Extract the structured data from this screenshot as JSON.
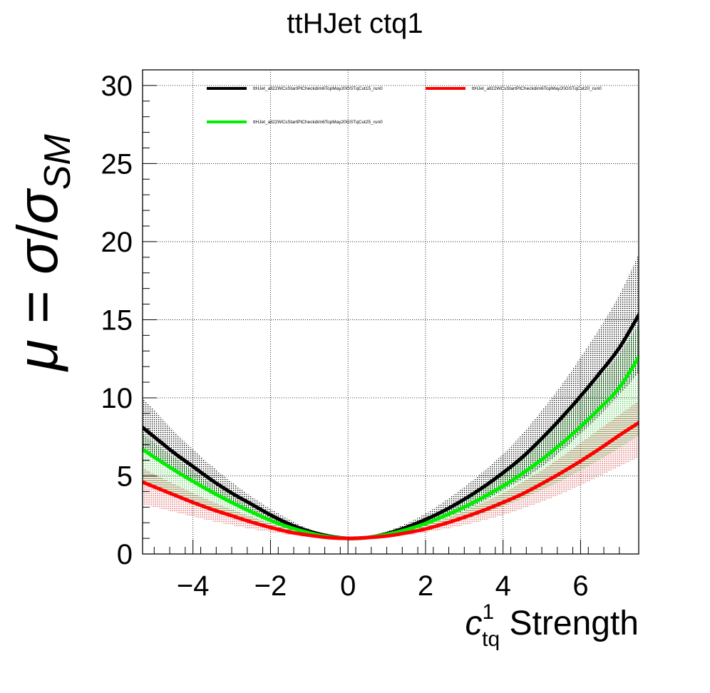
{
  "chart_data": {
    "type": "line",
    "title": "ttHJet ctq1",
    "xlabel": {
      "symbol": "c",
      "superscript": "1",
      "subscript": "tq",
      "text": "Strength"
    },
    "ylabel": {
      "mu": "μ",
      "eq": " = ",
      "sigma": "σ",
      "slash": "/",
      "sigma2": "σ",
      "subscript": "SM"
    },
    "xlim": [
      -5.3,
      7.5
    ],
    "ylim": [
      0,
      31
    ],
    "x_ticks": [
      -4,
      -2,
      0,
      2,
      4,
      6
    ],
    "x_tick_labels": [
      "−4",
      "−2",
      "0",
      "2",
      "4",
      "6"
    ],
    "y_ticks": [
      0,
      5,
      10,
      15,
      20,
      25,
      30
    ],
    "y_tick_labels": [
      "0",
      "5",
      "10",
      "15",
      "20",
      "25",
      "30"
    ],
    "grid": true,
    "legend_position": "top",
    "series": [
      {
        "name": "ttHJet_all22WCsStartPtCheckdim6TopMay20GSTqCut15_run0",
        "color": "#000000",
        "band_color": "#000000",
        "x": [
          -5.3,
          -5,
          -4.5,
          -4,
          -3.5,
          -3,
          -2.5,
          -2,
          -1.5,
          -1,
          -0.5,
          0,
          0.5,
          1,
          1.5,
          2,
          2.5,
          3,
          3.5,
          4,
          4.5,
          5,
          5.5,
          6,
          6.5,
          7,
          7.5
        ],
        "y": [
          8.1,
          7.5,
          6.5,
          5.6,
          4.7,
          3.9,
          3.2,
          2.5,
          1.9,
          1.45,
          1.15,
          1.0,
          1.05,
          1.3,
          1.7,
          2.2,
          2.8,
          3.5,
          4.3,
          5.2,
          6.2,
          7.4,
          8.7,
          10.1,
          11.6,
          13.2,
          15.3
        ],
        "band_lo": [
          6.6,
          6.1,
          5.3,
          4.6,
          3.9,
          3.3,
          2.7,
          2.1,
          1.6,
          1.3,
          1.08,
          1.0,
          1.0,
          1.15,
          1.45,
          1.85,
          2.3,
          2.8,
          3.4,
          4.1,
          4.8,
          5.6,
          6.6,
          7.7,
          8.9,
          10.2,
          11.6
        ],
        "band_hi": [
          10.0,
          9.2,
          7.9,
          6.7,
          5.6,
          4.6,
          3.7,
          2.9,
          2.2,
          1.6,
          1.22,
          1.0,
          1.12,
          1.45,
          1.95,
          2.6,
          3.4,
          4.3,
          5.3,
          6.4,
          7.7,
          9.2,
          10.8,
          12.6,
          14.5,
          16.6,
          19.2
        ]
      },
      {
        "name": "ttHJet_all22WCsStartPtCheckdim6TopMay20GSTqCut20_run0",
        "color": "#ff0000",
        "band_color": "#d03030",
        "x": [
          -5.3,
          -5,
          -4.5,
          -4,
          -3.5,
          -3,
          -2.5,
          -2,
          -1.5,
          -1,
          -0.5,
          0,
          0.5,
          1,
          1.5,
          2,
          2.5,
          3,
          3.5,
          4,
          4.5,
          5,
          5.5,
          6,
          6.5,
          7,
          7.5
        ],
        "y": [
          4.6,
          4.3,
          3.8,
          3.3,
          2.85,
          2.45,
          2.05,
          1.7,
          1.4,
          1.2,
          1.05,
          1.0,
          1.05,
          1.15,
          1.35,
          1.6,
          1.95,
          2.35,
          2.8,
          3.3,
          3.85,
          4.5,
          5.2,
          5.95,
          6.75,
          7.6,
          8.4
        ],
        "band_lo": [
          3.2,
          3.0,
          2.7,
          2.4,
          2.1,
          1.85,
          1.6,
          1.4,
          1.22,
          1.1,
          1.02,
          1.0,
          1.02,
          1.08,
          1.2,
          1.38,
          1.6,
          1.85,
          2.15,
          2.5,
          2.9,
          3.35,
          3.85,
          4.4,
          5.0,
          5.6,
          6.2
        ],
        "band_hi": [
          5.5,
          5.1,
          4.5,
          3.9,
          3.35,
          2.85,
          2.4,
          1.95,
          1.6,
          1.3,
          1.08,
          1.0,
          1.08,
          1.25,
          1.5,
          1.85,
          2.25,
          2.75,
          3.3,
          3.9,
          4.6,
          5.35,
          6.2,
          7.1,
          8.0,
          8.9,
          9.8
        ]
      },
      {
        "name": "ttHJet_all22WCsStartPtCheckdim6TopMay20GSTqCut25_run0",
        "color": "#00ee00",
        "band_color": "#22bb22",
        "x": [
          -5.3,
          -5,
          -4.5,
          -4,
          -3.5,
          -3,
          -2.5,
          -2,
          -1.5,
          -1,
          -0.5,
          0,
          0.5,
          1,
          1.5,
          2,
          2.5,
          3,
          3.5,
          4,
          4.5,
          5,
          5.5,
          6,
          6.5,
          7,
          7.5
        ],
        "y": [
          6.7,
          6.2,
          5.4,
          4.65,
          3.95,
          3.3,
          2.7,
          2.15,
          1.7,
          1.35,
          1.1,
          1.0,
          1.05,
          1.25,
          1.55,
          1.95,
          2.45,
          3.0,
          3.65,
          4.35,
          5.15,
          6.05,
          7.05,
          8.15,
          9.35,
          10.65,
          12.6
        ],
        "band_lo": [
          4.6,
          4.3,
          3.8,
          3.35,
          2.9,
          2.5,
          2.1,
          1.75,
          1.45,
          1.2,
          1.05,
          1.0,
          1.02,
          1.12,
          1.3,
          1.55,
          1.85,
          2.2,
          2.6,
          3.05,
          3.55,
          4.1,
          4.7,
          5.35,
          6.05,
          6.8,
          7.6
        ],
        "band_hi": [
          7.7,
          7.1,
          6.2,
          5.3,
          4.45,
          3.7,
          3.0,
          2.35,
          1.82,
          1.42,
          1.12,
          1.0,
          1.1,
          1.35,
          1.75,
          2.25,
          2.85,
          3.55,
          4.35,
          5.25,
          6.25,
          7.35,
          8.6,
          9.9,
          11.3,
          12.8,
          14.7
        ]
      }
    ]
  }
}
